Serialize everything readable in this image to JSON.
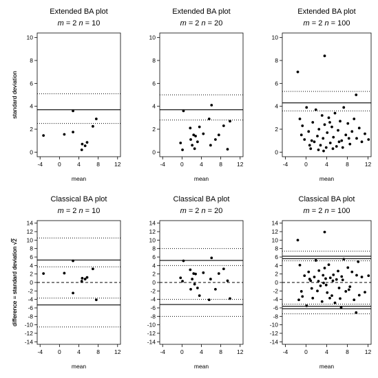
{
  "chart_data": [
    {
      "type": "scatter",
      "title": "Extended BA plot",
      "subtitle": {
        "m_sym": "m",
        "m_val": " = 2 ",
        "n_sym": "n",
        "n_val": " = 10"
      },
      "xlabel": "mean",
      "ylabel": "standard deviation",
      "xlim": [
        -4.6,
        12.6
      ],
      "ylim": [
        -0.4,
        10.4
      ],
      "xticks": [
        -4,
        0,
        4,
        8,
        12
      ],
      "yticks": [
        0,
        2,
        4,
        6,
        8,
        10
      ],
      "grid": false,
      "hlines": [
        {
          "y": 3.7,
          "style": "solid"
        },
        {
          "y": 5.1,
          "style": "dotted"
        },
        {
          "y": 2.5,
          "style": "dotted"
        }
      ],
      "points": [
        {
          "x": -3.3,
          "y": 1.45
        },
        {
          "x": 1.0,
          "y": 1.55
        },
        {
          "x": 2.8,
          "y": 3.6
        },
        {
          "x": 2.8,
          "y": 1.75
        },
        {
          "x": 4.6,
          "y": 0.2
        },
        {
          "x": 4.7,
          "y": 0.7
        },
        {
          "x": 5.3,
          "y": 0.55
        },
        {
          "x": 5.7,
          "y": 0.85
        },
        {
          "x": 6.9,
          "y": 2.25
        },
        {
          "x": 7.6,
          "y": 2.9
        }
      ]
    },
    {
      "type": "scatter",
      "title": "Extended BA plot",
      "subtitle": {
        "m_sym": "m",
        "m_val": " = 2 ",
        "n_sym": "n",
        "n_val": " = 20"
      },
      "xlabel": "mean",
      "ylabel": "",
      "xlim": [
        -4.6,
        12.6
      ],
      "ylim": [
        -0.4,
        10.4
      ],
      "xticks": [
        -4,
        0,
        4,
        8,
        12
      ],
      "yticks": [
        0,
        2,
        4,
        6,
        8,
        10
      ],
      "grid": false,
      "hlines": [
        {
          "y": 3.7,
          "style": "solid"
        },
        {
          "y": 5.0,
          "style": "dotted"
        },
        {
          "y": 2.8,
          "style": "dotted"
        }
      ],
      "points": [
        {
          "x": -0.3,
          "y": 0.8
        },
        {
          "x": 0.1,
          "y": 0.2
        },
        {
          "x": 0.3,
          "y": 3.6
        },
        {
          "x": 1.7,
          "y": 2.1
        },
        {
          "x": 1.8,
          "y": 1.1
        },
        {
          "x": 2.1,
          "y": 0.6
        },
        {
          "x": 2.4,
          "y": 1.5
        },
        {
          "x": 2.6,
          "y": 0.3
        },
        {
          "x": 2.8,
          "y": 1.4
        },
        {
          "x": 3.2,
          "y": 0.9
        },
        {
          "x": 3.6,
          "y": 2.2
        },
        {
          "x": 4.4,
          "y": 1.6
        },
        {
          "x": 5.6,
          "y": 2.9
        },
        {
          "x": 5.9,
          "y": 0.6
        },
        {
          "x": 6.1,
          "y": 4.1
        },
        {
          "x": 6.9,
          "y": 1.1
        },
        {
          "x": 7.6,
          "y": 1.5
        },
        {
          "x": 8.6,
          "y": 2.3
        },
        {
          "x": 9.4,
          "y": 0.25
        },
        {
          "x": 9.9,
          "y": 2.7
        }
      ]
    },
    {
      "type": "scatter",
      "title": "Extended BA plot",
      "subtitle": {
        "m_sym": "m",
        "m_val": " = 2 ",
        "n_sym": "n",
        "n_val": " = 100"
      },
      "xlabel": "mean",
      "ylabel": "standard deviation",
      "xlim": [
        -4.6,
        12.6
      ],
      "ylim": [
        -0.4,
        10.4
      ],
      "xticks": [
        -4,
        0,
        4,
        8,
        12
      ],
      "yticks": [
        0,
        2,
        4,
        6,
        8,
        10
      ],
      "grid": false,
      "hlines": [
        {
          "y": 4.3,
          "style": "solid"
        },
        {
          "y": 5.3,
          "style": "dotted"
        },
        {
          "y": 3.6,
          "style": "dotted"
        }
      ],
      "points": [
        {
          "x": -1.6,
          "y": 7.0
        },
        {
          "x": 3.6,
          "y": 8.4
        },
        {
          "x": 9.7,
          "y": 5.0
        },
        {
          "x": -1.2,
          "y": 2.9
        },
        {
          "x": -0.7,
          "y": 2.3
        },
        {
          "x": -0.3,
          "y": 1.1
        },
        {
          "x": 0.1,
          "y": 3.9
        },
        {
          "x": 0.5,
          "y": 1.8
        },
        {
          "x": 0.9,
          "y": 0.3
        },
        {
          "x": 1.3,
          "y": 2.6
        },
        {
          "x": 1.6,
          "y": 0.9
        },
        {
          "x": 1.9,
          "y": 3.7
        },
        {
          "x": 2.2,
          "y": 1.4
        },
        {
          "x": 2.5,
          "y": 2.0
        },
        {
          "x": 2.8,
          "y": 0.6
        },
        {
          "x": 3.1,
          "y": 3.2
        },
        {
          "x": 3.3,
          "y": 1.2
        },
        {
          "x": 3.6,
          "y": 2.4
        },
        {
          "x": 3.9,
          "y": 0.4
        },
        {
          "x": 4.1,
          "y": 1.7
        },
        {
          "x": 4.4,
          "y": 3.0
        },
        {
          "x": 4.7,
          "y": 0.8
        },
        {
          "x": 5.0,
          "y": 2.2
        },
        {
          "x": 5.3,
          "y": 1.3
        },
        {
          "x": 5.6,
          "y": 3.4
        },
        {
          "x": 5.9,
          "y": 0.5
        },
        {
          "x": 6.2,
          "y": 1.9
        },
        {
          "x": 6.6,
          "y": 2.7
        },
        {
          "x": 6.9,
          "y": 1.0
        },
        {
          "x": 7.3,
          "y": 3.9
        },
        {
          "x": 7.7,
          "y": 1.5
        },
        {
          "x": 8.1,
          "y": 2.5
        },
        {
          "x": 8.5,
          "y": 0.7
        },
        {
          "x": 8.9,
          "y": 1.8
        },
        {
          "x": 9.3,
          "y": 2.9
        },
        {
          "x": 9.8,
          "y": 1.2
        },
        {
          "x": 10.3,
          "y": 2.1
        },
        {
          "x": 10.8,
          "y": 0.9
        },
        {
          "x": 11.4,
          "y": 1.6
        },
        {
          "x": 12.1,
          "y": 1.1
        },
        {
          "x": 1.1,
          "y": 1.0
        },
        {
          "x": 2.4,
          "y": 0.2
        },
        {
          "x": 3.4,
          "y": 0.1
        },
        {
          "x": 4.6,
          "y": 2.6
        },
        {
          "x": 5.2,
          "y": 0.3
        },
        {
          "x": 6.4,
          "y": 0.9
        },
        {
          "x": 7.1,
          "y": 0.4
        },
        {
          "x": 8.3,
          "y": 1.2
        },
        {
          "x": 0.7,
          "y": 0.6
        },
        {
          "x": -0.9,
          "y": 1.5
        }
      ]
    },
    {
      "type": "scatter",
      "title": "Classical BA plot",
      "subtitle": {
        "m_sym": "m",
        "m_val": " = 2 ",
        "n_sym": "n",
        "n_val": " = 10"
      },
      "xlabel": "mean",
      "ylabel": "difference = standard deviation",
      "ylabel_suffix": "2",
      "xlim": [
        -4.6,
        12.6
      ],
      "ylim": [
        -14.6,
        14.6
      ],
      "xticks": [
        -4,
        0,
        4,
        8,
        12
      ],
      "yticks": [
        -14,
        -12,
        -10,
        -8,
        -6,
        -4,
        -2,
        0,
        2,
        4,
        6,
        8,
        10,
        12,
        14
      ],
      "grid": false,
      "hlines": [
        {
          "y": 5.3,
          "style": "solid"
        },
        {
          "y": -5.3,
          "style": "solid"
        },
        {
          "y": 10.5,
          "style": "dotted"
        },
        {
          "y": 3.7,
          "style": "dotted"
        },
        {
          "y": -3.7,
          "style": "dotted"
        },
        {
          "y": -10.5,
          "style": "dotted"
        },
        {
          "y": 0,
          "style": "dashed"
        }
      ],
      "points": [
        {
          "x": -3.3,
          "y": 2.1
        },
        {
          "x": 1.0,
          "y": 2.2
        },
        {
          "x": 2.8,
          "y": 5.1
        },
        {
          "x": 2.8,
          "y": -2.5
        },
        {
          "x": 4.6,
          "y": 0.3
        },
        {
          "x": 4.7,
          "y": 1.0
        },
        {
          "x": 5.3,
          "y": 0.8
        },
        {
          "x": 5.7,
          "y": 1.2
        },
        {
          "x": 6.9,
          "y": 3.2
        },
        {
          "x": 7.6,
          "y": -4.1
        }
      ]
    },
    {
      "type": "scatter",
      "title": "Classical BA plot",
      "subtitle": {
        "m_sym": "m",
        "m_val": " = 2 ",
        "n_sym": "n",
        "n_val": " = 20"
      },
      "xlabel": "mean",
      "ylabel": "difference = standard deviation",
      "ylabel_suffix": "2",
      "xlim": [
        -4.6,
        12.6
      ],
      "ylim": [
        -14.6,
        14.6
      ],
      "xticks": [
        -4,
        0,
        4,
        8,
        12
      ],
      "yticks": [
        -14,
        -12,
        -10,
        -8,
        -6,
        -4,
        -2,
        0,
        2,
        4,
        6,
        8,
        10,
        12,
        14
      ],
      "grid": false,
      "hlines": [
        {
          "y": 5.2,
          "style": "solid"
        },
        {
          "y": -5.2,
          "style": "solid"
        },
        {
          "y": 8.0,
          "style": "dotted"
        },
        {
          "y": 4.0,
          "style": "dotted"
        },
        {
          "y": -4.0,
          "style": "dotted"
        },
        {
          "y": -8.0,
          "style": "dotted"
        },
        {
          "y": 0,
          "style": "dashed"
        }
      ],
      "points": [
        {
          "x": -0.3,
          "y": 1.1
        },
        {
          "x": 0.1,
          "y": 0.3
        },
        {
          "x": 0.3,
          "y": 5.1
        },
        {
          "x": 1.7,
          "y": 3.0
        },
        {
          "x": 1.8,
          "y": -1.6
        },
        {
          "x": 2.1,
          "y": 0.8
        },
        {
          "x": 2.4,
          "y": 2.1
        },
        {
          "x": 2.6,
          "y": -0.4
        },
        {
          "x": 2.8,
          "y": 2.0
        },
        {
          "x": 3.2,
          "y": -1.3
        },
        {
          "x": 3.6,
          "y": -3.1
        },
        {
          "x": 4.4,
          "y": 2.3
        },
        {
          "x": 5.6,
          "y": -4.1
        },
        {
          "x": 5.9,
          "y": 0.8
        },
        {
          "x": 6.1,
          "y": 5.8
        },
        {
          "x": 6.9,
          "y": -1.6
        },
        {
          "x": 7.6,
          "y": 2.1
        },
        {
          "x": 8.6,
          "y": 3.2
        },
        {
          "x": 9.4,
          "y": 0.4
        },
        {
          "x": 9.9,
          "y": -3.8
        }
      ]
    },
    {
      "type": "scatter",
      "title": "Classical BA plot",
      "subtitle": {
        "m_sym": "m",
        "m_val": " = 2 ",
        "n_sym": "n",
        "n_val": " = 100"
      },
      "xlabel": "mean",
      "ylabel": "difference = standard deviation",
      "ylabel_suffix": "2",
      "xlim": [
        -4.6,
        12.6
      ],
      "ylim": [
        -14.6,
        14.6
      ],
      "xticks": [
        -4,
        0,
        4,
        8,
        12
      ],
      "yticks": [
        -14,
        -12,
        -10,
        -8,
        -6,
        -4,
        -2,
        0,
        2,
        4,
        6,
        8,
        10,
        12,
        14
      ],
      "grid": false,
      "hlines": [
        {
          "y": 6.2,
          "style": "solid"
        },
        {
          "y": 5.6,
          "style": "solid"
        },
        {
          "y": -5.6,
          "style": "solid"
        },
        {
          "y": -6.2,
          "style": "solid"
        },
        {
          "y": 7.4,
          "style": "dotted"
        },
        {
          "y": 5.1,
          "style": "dotted"
        },
        {
          "y": -5.1,
          "style": "dotted"
        },
        {
          "y": -7.4,
          "style": "dotted"
        },
        {
          "y": 0,
          "style": "dashed"
        }
      ],
      "points": [
        {
          "x": -1.6,
          "y": 10.0
        },
        {
          "x": 3.6,
          "y": 11.9
        },
        {
          "x": 9.7,
          "y": -7.1
        },
        {
          "x": -1.2,
          "y": 4.1
        },
        {
          "x": -0.7,
          "y": -3.3
        },
        {
          "x": -0.3,
          "y": 1.6
        },
        {
          "x": 0.1,
          "y": -5.5
        },
        {
          "x": 0.5,
          "y": 2.5
        },
        {
          "x": 0.9,
          "y": 0.4
        },
        {
          "x": 1.3,
          "y": -3.7
        },
        {
          "x": 1.6,
          "y": 1.3
        },
        {
          "x": 1.9,
          "y": 5.2
        },
        {
          "x": 2.2,
          "y": -2.0
        },
        {
          "x": 2.5,
          "y": 2.8
        },
        {
          "x": 2.8,
          "y": -0.8
        },
        {
          "x": 3.1,
          "y": -4.5
        },
        {
          "x": 3.3,
          "y": 1.7
        },
        {
          "x": 3.6,
          "y": 3.4
        },
        {
          "x": 3.9,
          "y": -0.6
        },
        {
          "x": 4.1,
          "y": -2.4
        },
        {
          "x": 4.4,
          "y": 4.2
        },
        {
          "x": 4.7,
          "y": 1.1
        },
        {
          "x": 5.0,
          "y": -3.1
        },
        {
          "x": 5.3,
          "y": 1.8
        },
        {
          "x": 5.6,
          "y": -4.8
        },
        {
          "x": 5.9,
          "y": 0.7
        },
        {
          "x": 6.2,
          "y": 2.7
        },
        {
          "x": 6.6,
          "y": -3.8
        },
        {
          "x": 6.9,
          "y": 1.4
        },
        {
          "x": 7.3,
          "y": 5.5
        },
        {
          "x": 7.7,
          "y": -2.1
        },
        {
          "x": 8.1,
          "y": 3.5
        },
        {
          "x": 8.5,
          "y": -1.0
        },
        {
          "x": 8.9,
          "y": 2.5
        },
        {
          "x": 9.3,
          "y": -4.1
        },
        {
          "x": 9.8,
          "y": 1.7
        },
        {
          "x": 10.3,
          "y": -3.0
        },
        {
          "x": 10.8,
          "y": 1.3
        },
        {
          "x": 11.4,
          "y": -2.3
        },
        {
          "x": 12.1,
          "y": 1.6
        },
        {
          "x": 1.1,
          "y": -1.4
        },
        {
          "x": 2.4,
          "y": 0.3
        },
        {
          "x": 3.4,
          "y": -0.1
        },
        {
          "x": 4.6,
          "y": -3.7
        },
        {
          "x": 5.2,
          "y": 0.4
        },
        {
          "x": 6.4,
          "y": -1.3
        },
        {
          "x": 7.1,
          "y": 0.6
        },
        {
          "x": 8.3,
          "y": -1.7
        },
        {
          "x": 0.7,
          "y": 0.8
        },
        {
          "x": -0.9,
          "y": -2.1
        },
        {
          "x": 6.8,
          "y": -5.9
        },
        {
          "x": 10.1,
          "y": 4.9
        },
        {
          "x": -1.4,
          "y": -4.1
        },
        {
          "x": 3.8,
          "y": 0.9
        }
      ]
    }
  ]
}
